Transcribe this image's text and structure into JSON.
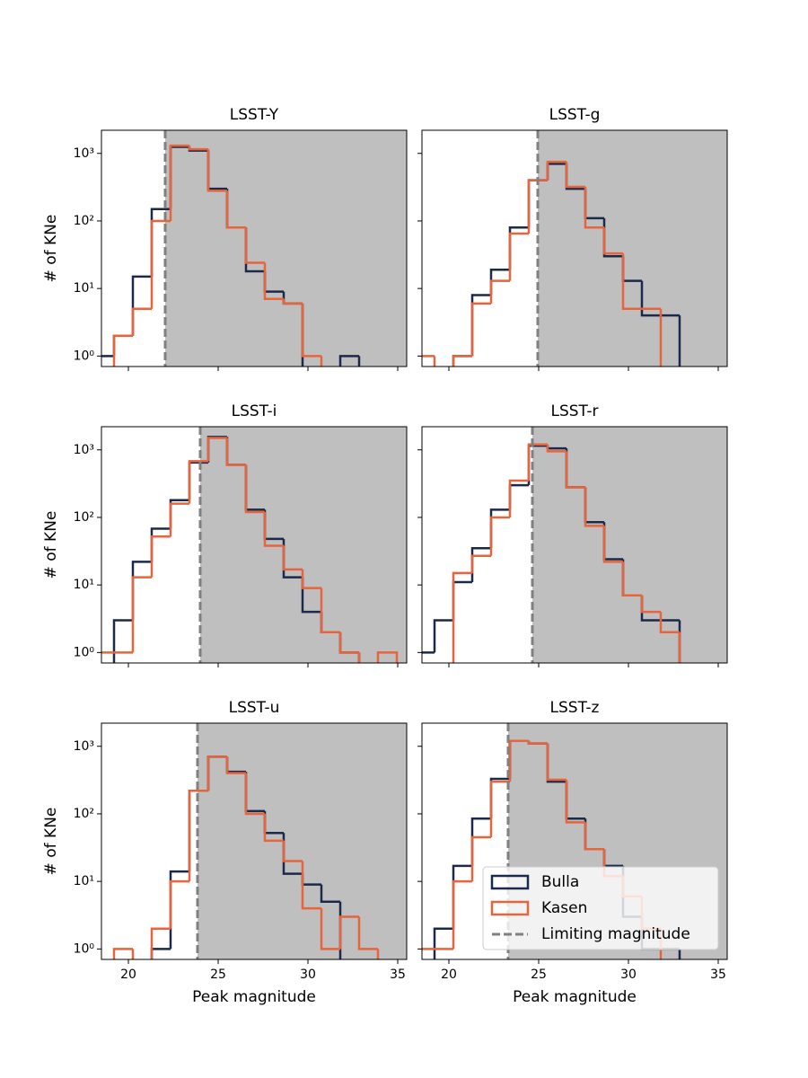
{
  "chart_data": [
    {
      "type": "histogram",
      "title": "LSST-Y",
      "ylabel": "# of KNe",
      "log_y": true,
      "limit_mag": 22.05,
      "bins": [
        18.15,
        19.2,
        20.25,
        21.3,
        22.35,
        23.4,
        24.45,
        25.5,
        26.55,
        27.6,
        28.65,
        29.7,
        30.75,
        31.8,
        32.85,
        33.9,
        34.95
      ],
      "series": [
        {
          "color": "#1b2a4a",
          "values": [
            1,
            2,
            15,
            150,
            1250,
            1100,
            300,
            80,
            18,
            9,
            6,
            0,
            0,
            1,
            0,
            0
          ]
        },
        {
          "color": "#e8643c",
          "values": [
            0,
            2,
            5,
            100,
            1300,
            1150,
            280,
            80,
            24,
            7,
            6,
            1,
            0,
            0,
            0,
            0
          ]
        }
      ],
      "xlim": [
        18.5,
        35.5
      ],
      "xticks": [
        20,
        25,
        30,
        35
      ],
      "ylim": [
        0.7,
        2200
      ],
      "yticks": [
        {
          "value": 1,
          "label": "10⁰"
        },
        {
          "value": 10,
          "label": "10¹"
        },
        {
          "value": 100,
          "label": "10²"
        },
        {
          "value": 1000,
          "label": "10³"
        }
      ]
    },
    {
      "type": "histogram",
      "title": "LSST-g",
      "log_y": true,
      "limit_mag": 24.95,
      "bins": [
        18.15,
        19.2,
        20.25,
        21.3,
        22.35,
        23.4,
        24.45,
        25.5,
        26.55,
        27.6,
        28.65,
        29.7,
        30.75,
        31.8,
        32.85,
        33.9,
        34.95
      ],
      "series": [
        {
          "color": "#1b2a4a",
          "values": [
            0,
            0,
            1,
            8,
            19,
            80,
            400,
            700,
            300,
            110,
            30,
            13,
            4,
            4,
            0,
            0
          ]
        },
        {
          "color": "#e8643c",
          "values": [
            1,
            0,
            1,
            6,
            13,
            65,
            400,
            750,
            320,
            80,
            33,
            5,
            5,
            0,
            0,
            0
          ]
        }
      ],
      "xlim": [
        18.5,
        35.5
      ],
      "xticks": [
        20,
        25,
        30,
        35
      ],
      "ylim": [
        0.7,
        2200
      ],
      "yticks": [
        1,
        10,
        100,
        1000
      ]
    },
    {
      "type": "histogram",
      "title": "LSST-i",
      "ylabel": "# of KNe",
      "log_y": true,
      "limit_mag": 24.0,
      "bins": [
        18.15,
        19.2,
        20.25,
        21.3,
        22.35,
        23.4,
        24.45,
        25.5,
        26.55,
        27.6,
        28.65,
        29.7,
        30.75,
        31.8,
        32.85,
        33.9,
        34.95
      ],
      "series": [
        {
          "color": "#1b2a4a",
          "values": [
            0,
            3,
            22,
            68,
            180,
            650,
            1550,
            600,
            130,
            48,
            13,
            4,
            2,
            1,
            0,
            0
          ]
        },
        {
          "color": "#e8643c",
          "values": [
            1,
            1,
            13,
            52,
            160,
            680,
            1500,
            600,
            120,
            38,
            17,
            9,
            2,
            1,
            0,
            1
          ]
        }
      ],
      "xlim": [
        18.5,
        35.5
      ],
      "xticks": [
        20,
        25,
        30,
        35
      ],
      "ylim": [
        0.7,
        2200
      ],
      "yticks": [
        {
          "value": 1,
          "label": "10⁰"
        },
        {
          "value": 10,
          "label": "10¹"
        },
        {
          "value": 100,
          "label": "10²"
        },
        {
          "value": 1000,
          "label": "10³"
        }
      ]
    },
    {
      "type": "histogram",
      "title": "LSST-r",
      "log_y": true,
      "limit_mag": 24.65,
      "bins": [
        18.15,
        19.2,
        20.25,
        21.3,
        22.35,
        23.4,
        24.45,
        25.5,
        26.55,
        27.6,
        28.65,
        29.7,
        30.75,
        31.8,
        32.85,
        33.9,
        34.95
      ],
      "series": [
        {
          "color": "#1b2a4a",
          "values": [
            1,
            3,
            11,
            35,
            130,
            300,
            1150,
            1050,
            280,
            85,
            24,
            7,
            3,
            3,
            0,
            0
          ]
        },
        {
          "color": "#e8643c",
          "values": [
            0,
            0,
            15,
            27,
            100,
            350,
            1200,
            950,
            280,
            75,
            22,
            7,
            4,
            2,
            0,
            0
          ]
        }
      ],
      "xlim": [
        18.5,
        35.5
      ],
      "xticks": [
        20,
        25,
        30,
        35
      ],
      "ylim": [
        0.7,
        2200
      ],
      "yticks": [
        1,
        10,
        100,
        1000
      ]
    },
    {
      "type": "histogram",
      "title": "LSST-u",
      "ylabel": "# of KNe",
      "xlabel": "Peak magnitude",
      "log_y": true,
      "limit_mag": 23.85,
      "bins": [
        18.15,
        19.2,
        20.25,
        21.3,
        22.35,
        23.4,
        24.45,
        25.5,
        26.55,
        27.6,
        28.65,
        29.7,
        30.75,
        31.8,
        32.85,
        33.9,
        34.95
      ],
      "series": [
        {
          "color": "#1b2a4a",
          "values": [
            0,
            0,
            0,
            1,
            14,
            220,
            700,
            420,
            110,
            52,
            13,
            9,
            5,
            0,
            0,
            0
          ]
        },
        {
          "color": "#e8643c",
          "values": [
            0,
            1,
            0,
            2,
            10,
            220,
            700,
            400,
            100,
            40,
            20,
            4,
            1,
            3,
            1,
            0
          ]
        }
      ],
      "xlim": [
        18.5,
        35.5
      ],
      "xticks": [
        20,
        25,
        30,
        35
      ],
      "ylim": [
        0.7,
        2200
      ],
      "yticks": [
        {
          "value": 1,
          "label": "10⁰"
        },
        {
          "value": 10,
          "label": "10¹"
        },
        {
          "value": 100,
          "label": "10²"
        },
        {
          "value": 1000,
          "label": "10³"
        }
      ]
    },
    {
      "type": "histogram",
      "title": "LSST-z",
      "xlabel": "Peak magnitude",
      "log_y": true,
      "limit_mag": 23.3,
      "bins": [
        18.15,
        19.2,
        20.25,
        21.3,
        22.35,
        23.4,
        24.45,
        25.5,
        26.55,
        27.6,
        28.65,
        29.7,
        30.75,
        31.8,
        32.85,
        33.9,
        34.95
      ],
      "series": [
        {
          "name": "Bulla",
          "color": "#1b2a4a",
          "values": [
            0,
            2,
            17,
            85,
            330,
            1200,
            1100,
            300,
            85,
            30,
            17,
            3,
            1,
            1,
            0,
            0
          ]
        },
        {
          "name": "Kasen",
          "color": "#e8643c",
          "values": [
            1,
            1,
            10,
            45,
            300,
            1200,
            1100,
            320,
            75,
            30,
            12,
            6,
            2,
            0,
            0,
            0
          ]
        }
      ],
      "limit_label": "Limiting magnitude",
      "legend": "lower right",
      "xlim": [
        18.5,
        35.5
      ],
      "xticks": [
        20,
        25,
        30,
        35
      ],
      "ylim": [
        0.7,
        2200
      ],
      "yticks": [
        1,
        10,
        100,
        1000
      ]
    }
  ]
}
